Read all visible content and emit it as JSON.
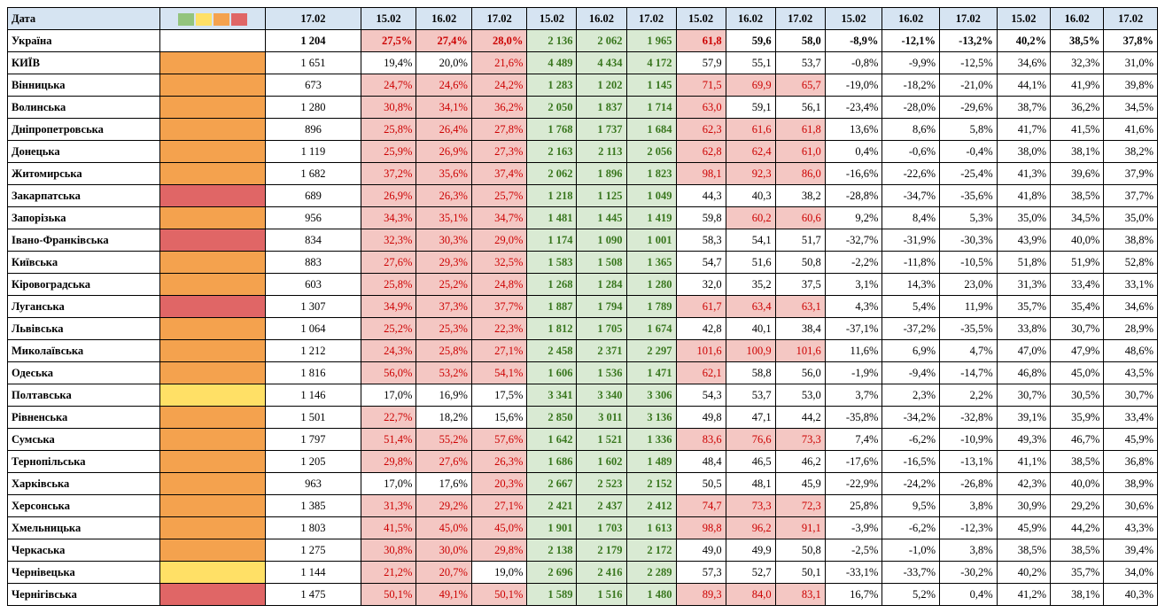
{
  "colors": {
    "header_bg": "#d6e4f2",
    "status_orange": "#f4a24e",
    "status_red": "#e06666",
    "status_yellow": "#ffe066",
    "cell_pink": "#f4c7c3",
    "cell_green": "#d9ead3",
    "green_text": "#38761d",
    "red_text": "#cc0000",
    "legend": [
      "#93c47d",
      "#ffe066",
      "#f4a24e",
      "#e06666"
    ]
  },
  "header": {
    "date_label": "Дата",
    "g0": "17.02",
    "g1": [
      "15.02",
      "16.02",
      "17.02"
    ],
    "g2": [
      "15.02",
      "16.02",
      "17.02"
    ],
    "g3": [
      "15.02",
      "16.02",
      "17.02"
    ],
    "g4": [
      "15.02",
      "16.02",
      "17.02"
    ],
    "g5": [
      "15.02",
      "16.02",
      "17.02"
    ]
  },
  "summary": {
    "name": "Україна",
    "num": "1 204",
    "pct": [
      "27,5%",
      "27,4%",
      "28,0%"
    ],
    "pct_hl": [
      true,
      true,
      true
    ],
    "pct_red": [
      true,
      true,
      true
    ],
    "grn": [
      "2 136",
      "2 062",
      "1 965"
    ],
    "v": [
      "61,8",
      "59,6",
      "58,0"
    ],
    "v_hl": [
      true,
      false,
      false
    ],
    "d": [
      "-8,9%",
      "-12,1%",
      "-13,2%"
    ],
    "p": [
      "40,2%",
      "38,5%",
      "37,8%"
    ]
  },
  "rows": [
    {
      "name": "КИЇВ",
      "status": "orange",
      "num": "1 651",
      "pct": [
        "19,4%",
        "20,0%",
        "21,6%"
      ],
      "pct_hl": [
        false,
        false,
        true
      ],
      "pct_red": [
        false,
        false,
        true
      ],
      "grn": [
        "4 489",
        "4 434",
        "4 172"
      ],
      "v": [
        "57,9",
        "55,1",
        "53,7"
      ],
      "v_hl": [
        false,
        false,
        false
      ],
      "d": [
        "-0,8%",
        "-9,9%",
        "-12,5%"
      ],
      "p": [
        "34,6%",
        "32,3%",
        "31,0%"
      ]
    },
    {
      "name": "Вінницька",
      "status": "orange",
      "num": "673",
      "pct": [
        "24,7%",
        "24,6%",
        "24,2%"
      ],
      "pct_hl": [
        true,
        true,
        true
      ],
      "pct_red": [
        true,
        true,
        true
      ],
      "grn": [
        "1 283",
        "1 202",
        "1 145"
      ],
      "v": [
        "71,5",
        "69,9",
        "65,7"
      ],
      "v_hl": [
        true,
        true,
        true
      ],
      "d": [
        "-19,0%",
        "-18,2%",
        "-21,0%"
      ],
      "p": [
        "44,1%",
        "41,9%",
        "39,8%"
      ]
    },
    {
      "name": "Волинська",
      "status": "orange",
      "num": "1 280",
      "pct": [
        "30,8%",
        "34,1%",
        "36,2%"
      ],
      "pct_hl": [
        true,
        true,
        true
      ],
      "pct_red": [
        true,
        true,
        true
      ],
      "grn": [
        "2 050",
        "1 837",
        "1 714"
      ],
      "v": [
        "63,0",
        "59,1",
        "56,1"
      ],
      "v_hl": [
        true,
        false,
        false
      ],
      "d": [
        "-23,4%",
        "-28,0%",
        "-29,6%"
      ],
      "p": [
        "38,7%",
        "36,2%",
        "34,5%"
      ]
    },
    {
      "name": "Дніпропетровська",
      "status": "orange",
      "num": "896",
      "pct": [
        "25,8%",
        "26,4%",
        "27,8%"
      ],
      "pct_hl": [
        true,
        true,
        true
      ],
      "pct_red": [
        true,
        true,
        true
      ],
      "grn": [
        "1 768",
        "1 737",
        "1 684"
      ],
      "v": [
        "62,3",
        "61,6",
        "61,8"
      ],
      "v_hl": [
        true,
        true,
        true
      ],
      "d": [
        "13,6%",
        "8,6%",
        "5,8%"
      ],
      "p": [
        "41,7%",
        "41,5%",
        "41,6%"
      ]
    },
    {
      "name": "Донецька",
      "status": "orange",
      "num": "1 119",
      "pct": [
        "25,9%",
        "26,9%",
        "27,3%"
      ],
      "pct_hl": [
        true,
        true,
        true
      ],
      "pct_red": [
        true,
        true,
        true
      ],
      "grn": [
        "2 163",
        "2 113",
        "2 056"
      ],
      "v": [
        "62,8",
        "62,4",
        "61,0"
      ],
      "v_hl": [
        true,
        true,
        true
      ],
      "d": [
        "0,4%",
        "-0,6%",
        "-0,4%"
      ],
      "p": [
        "38,0%",
        "38,1%",
        "38,2%"
      ]
    },
    {
      "name": "Житомирська",
      "status": "orange",
      "num": "1 682",
      "pct": [
        "37,2%",
        "35,6%",
        "37,4%"
      ],
      "pct_hl": [
        true,
        true,
        true
      ],
      "pct_red": [
        true,
        true,
        true
      ],
      "grn": [
        "2 062",
        "1 896",
        "1 823"
      ],
      "v": [
        "98,1",
        "92,3",
        "86,0"
      ],
      "v_hl": [
        true,
        true,
        true
      ],
      "d": [
        "-16,6%",
        "-22,6%",
        "-25,4%"
      ],
      "p": [
        "41,3%",
        "39,6%",
        "37,9%"
      ]
    },
    {
      "name": "Закарпатська",
      "status": "red",
      "num": "689",
      "pct": [
        "26,9%",
        "26,3%",
        "25,7%"
      ],
      "pct_hl": [
        true,
        true,
        true
      ],
      "pct_red": [
        true,
        true,
        true
      ],
      "grn": [
        "1 218",
        "1 125",
        "1 049"
      ],
      "v": [
        "44,3",
        "40,3",
        "38,2"
      ],
      "v_hl": [
        false,
        false,
        false
      ],
      "d": [
        "-28,8%",
        "-34,7%",
        "-35,6%"
      ],
      "p": [
        "41,8%",
        "38,5%",
        "37,7%"
      ]
    },
    {
      "name": "Запорізька",
      "status": "orange",
      "num": "956",
      "pct": [
        "34,3%",
        "35,1%",
        "34,7%"
      ],
      "pct_hl": [
        true,
        true,
        true
      ],
      "pct_red": [
        true,
        true,
        true
      ],
      "grn": [
        "1 481",
        "1 445",
        "1 419"
      ],
      "v": [
        "59,8",
        "60,2",
        "60,6"
      ],
      "v_hl": [
        false,
        true,
        true
      ],
      "d": [
        "9,2%",
        "8,4%",
        "5,3%"
      ],
      "p": [
        "35,0%",
        "34,5%",
        "35,0%"
      ]
    },
    {
      "name": "Івано-Франківська",
      "status": "red",
      "num": "834",
      "pct": [
        "32,3%",
        "30,3%",
        "29,0%"
      ],
      "pct_hl": [
        true,
        true,
        true
      ],
      "pct_red": [
        true,
        true,
        true
      ],
      "grn": [
        "1 174",
        "1 090",
        "1 001"
      ],
      "v": [
        "58,3",
        "54,1",
        "51,7"
      ],
      "v_hl": [
        false,
        false,
        false
      ],
      "d": [
        "-32,7%",
        "-31,9%",
        "-30,3%"
      ],
      "p": [
        "43,9%",
        "40,0%",
        "38,8%"
      ]
    },
    {
      "name": "Київська",
      "status": "orange",
      "num": "883",
      "pct": [
        "27,6%",
        "29,3%",
        "32,5%"
      ],
      "pct_hl": [
        true,
        true,
        true
      ],
      "pct_red": [
        true,
        true,
        true
      ],
      "grn": [
        "1 583",
        "1 508",
        "1 365"
      ],
      "v": [
        "54,7",
        "51,6",
        "50,8"
      ],
      "v_hl": [
        false,
        false,
        false
      ],
      "d": [
        "-2,2%",
        "-11,8%",
        "-10,5%"
      ],
      "p": [
        "51,8%",
        "51,9%",
        "52,8%"
      ]
    },
    {
      "name": "Кіровоградська",
      "status": "orange",
      "num": "603",
      "pct": [
        "25,8%",
        "25,2%",
        "24,8%"
      ],
      "pct_hl": [
        true,
        true,
        true
      ],
      "pct_red": [
        true,
        true,
        true
      ],
      "grn": [
        "1 268",
        "1 284",
        "1 280"
      ],
      "v": [
        "32,0",
        "35,2",
        "37,5"
      ],
      "v_hl": [
        false,
        false,
        false
      ],
      "d": [
        "3,1%",
        "14,3%",
        "23,0%"
      ],
      "p": [
        "31,3%",
        "33,4%",
        "33,1%"
      ]
    },
    {
      "name": "Луганська",
      "status": "red",
      "num": "1 307",
      "pct": [
        "34,9%",
        "37,3%",
        "37,7%"
      ],
      "pct_hl": [
        true,
        true,
        true
      ],
      "pct_red": [
        true,
        true,
        true
      ],
      "grn": [
        "1 887",
        "1 794",
        "1 789"
      ],
      "v": [
        "61,7",
        "63,4",
        "63,1"
      ],
      "v_hl": [
        true,
        true,
        true
      ],
      "d": [
        "4,3%",
        "5,4%",
        "11,9%"
      ],
      "p": [
        "35,7%",
        "35,4%",
        "34,6%"
      ]
    },
    {
      "name": "Львівська",
      "status": "orange",
      "num": "1 064",
      "pct": [
        "25,2%",
        "25,3%",
        "22,3%"
      ],
      "pct_hl": [
        true,
        true,
        true
      ],
      "pct_red": [
        true,
        true,
        true
      ],
      "grn": [
        "1 812",
        "1 705",
        "1 674"
      ],
      "v": [
        "42,8",
        "40,1",
        "38,4"
      ],
      "v_hl": [
        false,
        false,
        false
      ],
      "d": [
        "-37,1%",
        "-37,2%",
        "-35,5%"
      ],
      "p": [
        "33,8%",
        "30,7%",
        "28,9%"
      ]
    },
    {
      "name": "Миколаївська",
      "status": "orange",
      "num": "1 212",
      "pct": [
        "24,3%",
        "25,8%",
        "27,1%"
      ],
      "pct_hl": [
        true,
        true,
        true
      ],
      "pct_red": [
        true,
        true,
        true
      ],
      "grn": [
        "2 458",
        "2 371",
        "2 297"
      ],
      "v": [
        "101,6",
        "100,9",
        "101,6"
      ],
      "v_hl": [
        true,
        true,
        true
      ],
      "d": [
        "11,6%",
        "6,9%",
        "4,7%"
      ],
      "p": [
        "47,0%",
        "47,9%",
        "48,6%"
      ]
    },
    {
      "name": "Одеська",
      "status": "orange",
      "num": "1 816",
      "pct": [
        "56,0%",
        "53,2%",
        "54,1%"
      ],
      "pct_hl": [
        true,
        true,
        true
      ],
      "pct_red": [
        true,
        true,
        true
      ],
      "grn": [
        "1 606",
        "1 536",
        "1 471"
      ],
      "v": [
        "62,1",
        "58,8",
        "56,0"
      ],
      "v_hl": [
        true,
        false,
        false
      ],
      "d": [
        "-1,9%",
        "-9,4%",
        "-14,7%"
      ],
      "p": [
        "46,8%",
        "45,0%",
        "43,5%"
      ]
    },
    {
      "name": "Полтавська",
      "status": "yellow",
      "num": "1 146",
      "pct": [
        "17,0%",
        "16,9%",
        "17,5%"
      ],
      "pct_hl": [
        false,
        false,
        false
      ],
      "pct_red": [
        false,
        false,
        false
      ],
      "grn": [
        "3 341",
        "3 340",
        "3 306"
      ],
      "v": [
        "54,3",
        "53,7",
        "53,0"
      ],
      "v_hl": [
        false,
        false,
        false
      ],
      "d": [
        "3,7%",
        "2,3%",
        "2,2%"
      ],
      "p": [
        "30,7%",
        "30,5%",
        "30,7%"
      ]
    },
    {
      "name": "Рівненська",
      "status": "orange",
      "num": "1 501",
      "pct": [
        "22,7%",
        "18,2%",
        "15,6%"
      ],
      "pct_hl": [
        true,
        false,
        false
      ],
      "pct_red": [
        true,
        false,
        false
      ],
      "grn": [
        "2 850",
        "3 011",
        "3 136"
      ],
      "v": [
        "49,8",
        "47,1",
        "44,2"
      ],
      "v_hl": [
        false,
        false,
        false
      ],
      "d": [
        "-35,8%",
        "-34,2%",
        "-32,8%"
      ],
      "p": [
        "39,1%",
        "35,9%",
        "33,4%"
      ]
    },
    {
      "name": "Сумська",
      "status": "orange",
      "num": "1 797",
      "pct": [
        "51,4%",
        "55,2%",
        "57,6%"
      ],
      "pct_hl": [
        true,
        true,
        true
      ],
      "pct_red": [
        true,
        true,
        true
      ],
      "grn": [
        "1 642",
        "1 521",
        "1 336"
      ],
      "v": [
        "83,6",
        "76,6",
        "73,3"
      ],
      "v_hl": [
        true,
        true,
        true
      ],
      "d": [
        "7,4%",
        "-6,2%",
        "-10,9%"
      ],
      "p": [
        "49,3%",
        "46,7%",
        "45,9%"
      ]
    },
    {
      "name": "Тернопільська",
      "status": "orange",
      "num": "1 205",
      "pct": [
        "29,8%",
        "27,6%",
        "26,3%"
      ],
      "pct_hl": [
        true,
        true,
        true
      ],
      "pct_red": [
        true,
        true,
        true
      ],
      "grn": [
        "1 686",
        "1 602",
        "1 489"
      ],
      "v": [
        "48,4",
        "46,5",
        "46,2"
      ],
      "v_hl": [
        false,
        false,
        false
      ],
      "d": [
        "-17,6%",
        "-16,5%",
        "-13,1%"
      ],
      "p": [
        "41,1%",
        "38,5%",
        "36,8%"
      ]
    },
    {
      "name": "Харківська",
      "status": "orange",
      "num": "963",
      "pct": [
        "17,0%",
        "17,6%",
        "20,3%"
      ],
      "pct_hl": [
        false,
        false,
        true
      ],
      "pct_red": [
        false,
        false,
        true
      ],
      "grn": [
        "2 667",
        "2 523",
        "2 152"
      ],
      "v": [
        "50,5",
        "48,1",
        "45,9"
      ],
      "v_hl": [
        false,
        false,
        false
      ],
      "d": [
        "-22,9%",
        "-24,2%",
        "-26,8%"
      ],
      "p": [
        "42,3%",
        "40,0%",
        "38,9%"
      ]
    },
    {
      "name": "Херсонська",
      "status": "orange",
      "num": "1 385",
      "pct": [
        "31,3%",
        "29,2%",
        "27,1%"
      ],
      "pct_hl": [
        true,
        true,
        true
      ],
      "pct_red": [
        true,
        true,
        true
      ],
      "grn": [
        "2 421",
        "2 437",
        "2 412"
      ],
      "v": [
        "74,7",
        "73,3",
        "72,3"
      ],
      "v_hl": [
        true,
        true,
        true
      ],
      "d": [
        "25,8%",
        "9,5%",
        "3,8%"
      ],
      "p": [
        "30,9%",
        "29,2%",
        "30,6%"
      ]
    },
    {
      "name": "Хмельницька",
      "status": "orange",
      "num": "1 803",
      "pct": [
        "41,5%",
        "45,0%",
        "45,0%"
      ],
      "pct_hl": [
        true,
        true,
        true
      ],
      "pct_red": [
        true,
        true,
        true
      ],
      "grn": [
        "1 901",
        "1 703",
        "1 613"
      ],
      "v": [
        "98,8",
        "96,2",
        "91,1"
      ],
      "v_hl": [
        true,
        true,
        true
      ],
      "d": [
        "-3,9%",
        "-6,2%",
        "-12,3%"
      ],
      "p": [
        "45,9%",
        "44,2%",
        "43,3%"
      ]
    },
    {
      "name": "Черкаська",
      "status": "orange",
      "num": "1 275",
      "pct": [
        "30,8%",
        "30,0%",
        "29,8%"
      ],
      "pct_hl": [
        true,
        true,
        true
      ],
      "pct_red": [
        true,
        true,
        true
      ],
      "grn": [
        "2 138",
        "2 179",
        "2 172"
      ],
      "v": [
        "49,0",
        "49,9",
        "50,8"
      ],
      "v_hl": [
        false,
        false,
        false
      ],
      "d": [
        "-2,5%",
        "-1,0%",
        "3,8%"
      ],
      "p": [
        "38,5%",
        "38,5%",
        "39,4%"
      ]
    },
    {
      "name": "Чернівецька",
      "status": "yellow",
      "num": "1 144",
      "pct": [
        "21,2%",
        "20,7%",
        "19,0%"
      ],
      "pct_hl": [
        true,
        true,
        false
      ],
      "pct_red": [
        true,
        true,
        false
      ],
      "grn": [
        "2 696",
        "2 416",
        "2 289"
      ],
      "v": [
        "57,3",
        "52,7",
        "50,1"
      ],
      "v_hl": [
        false,
        false,
        false
      ],
      "d": [
        "-33,1%",
        "-33,7%",
        "-30,2%"
      ],
      "p": [
        "40,2%",
        "35,7%",
        "34,0%"
      ]
    },
    {
      "name": "Чернігівська",
      "status": "red",
      "num": "1 475",
      "pct": [
        "50,1%",
        "49,1%",
        "50,1%"
      ],
      "pct_hl": [
        true,
        true,
        true
      ],
      "pct_red": [
        true,
        true,
        true
      ],
      "grn": [
        "1 589",
        "1 516",
        "1 480"
      ],
      "v": [
        "89,3",
        "84,0",
        "83,1"
      ],
      "v_hl": [
        true,
        true,
        true
      ],
      "d": [
        "16,7%",
        "5,2%",
        "0,4%"
      ],
      "p": [
        "41,2%",
        "38,1%",
        "40,3%"
      ]
    }
  ]
}
